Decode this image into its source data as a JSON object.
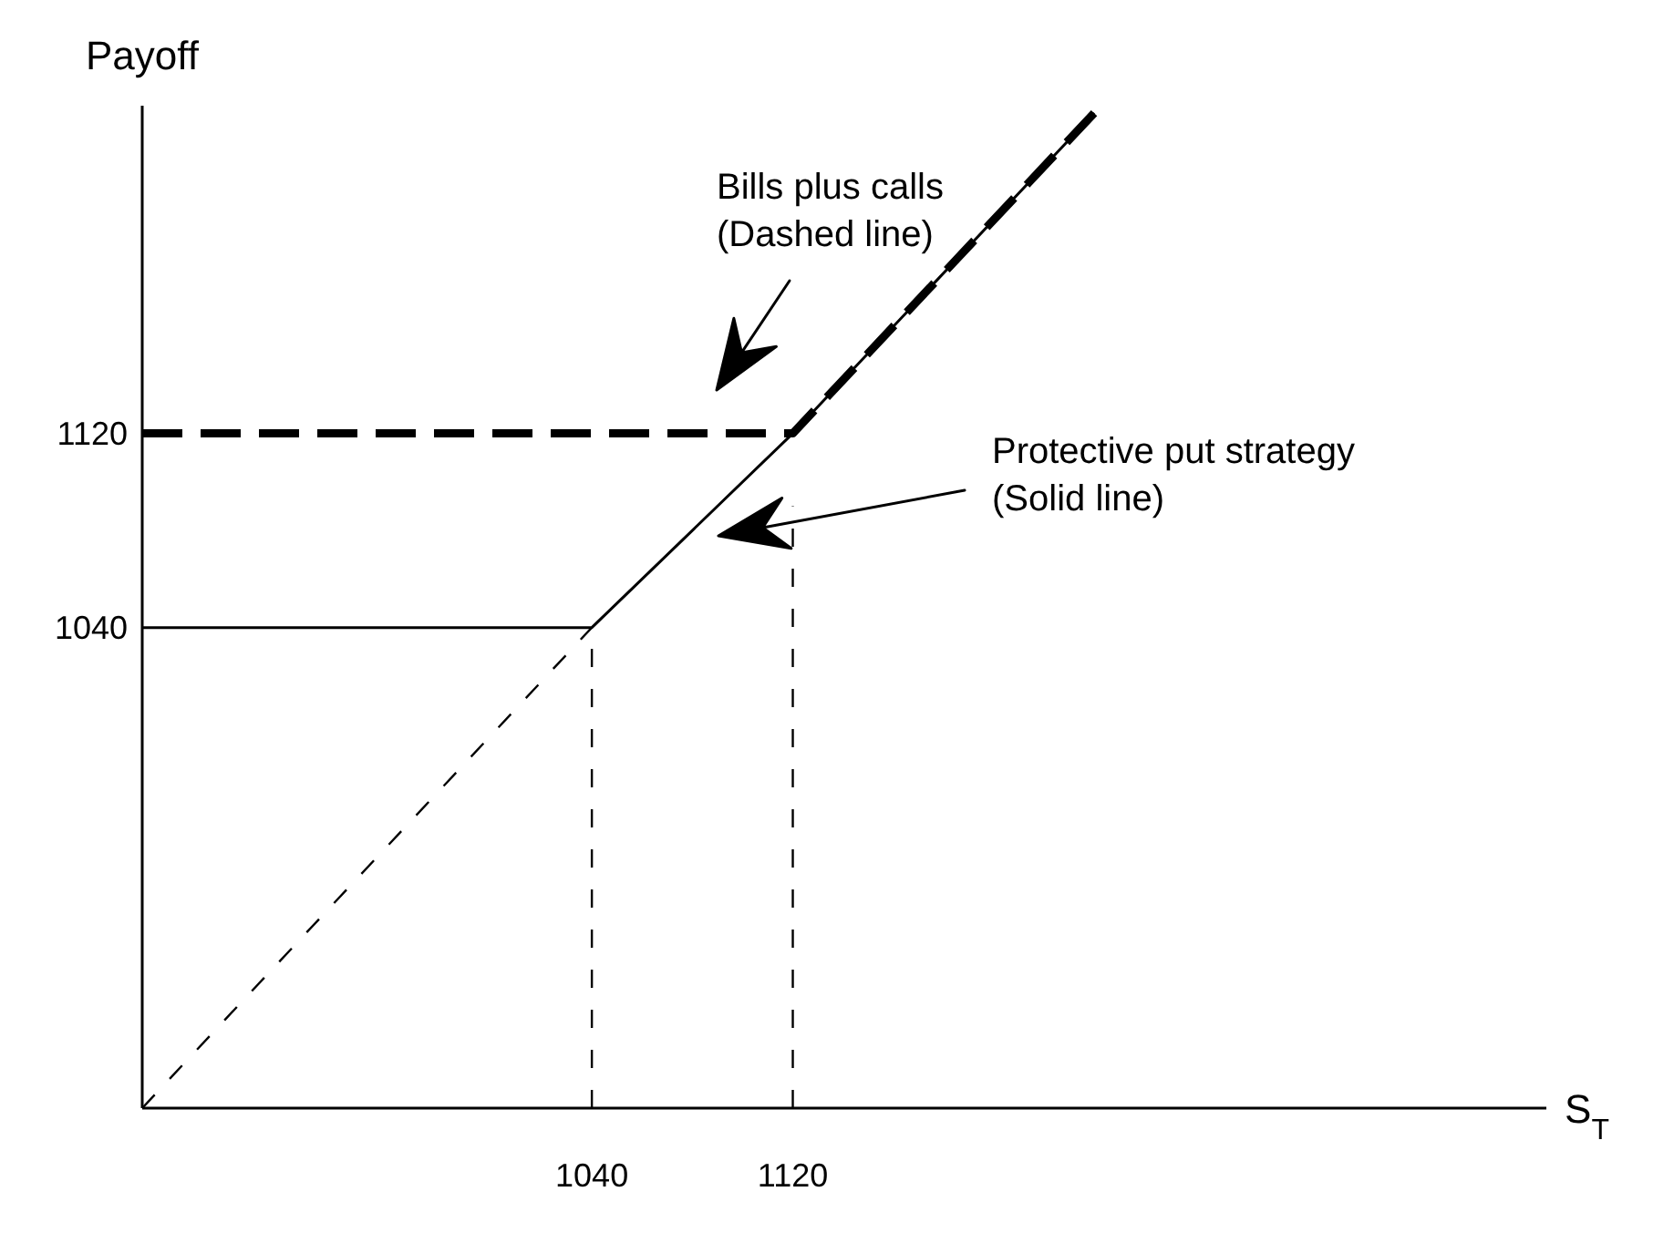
{
  "chart_data": {
    "type": "line",
    "xlabel": "S$_{T}$",
    "ylabel": "Payoff",
    "xlim": [
      861,
      1420
    ],
    "ylim": [
      842,
      1255
    ],
    "xticks": [
      1040,
      1120
    ],
    "yticks": [
      1040,
      1120
    ],
    "marker": "none",
    "series": [
      {
        "color": "#000000",
        "line_style": "solid",
        "x": [
          861,
          1040,
          1120,
          1240
        ],
        "values": [
          1040,
          1040,
          1120,
          1252
        ]
      },
      {
        "color": "#000000",
        "line_style": "dashed",
        "x": [
          861,
          1120,
          1240
        ],
        "values": [
          1120,
          1120,
          1252
        ]
      },
      {
        "color": "#000000",
        "line_style": "dashed",
        "x": [
          861,
          1040
        ],
        "values": [
          842,
          1040
        ]
      },
      {
        "color": "#000000",
        "line_style": "dashed",
        "x": [
          1040,
          1040
        ],
        "values": [
          842,
          1040
        ]
      },
      {
        "color": "#000000",
        "line_style": "dashed",
        "x": [
          1120,
          1120
        ],
        "values": [
          842,
          1090
        ]
      }
    ],
    "annotations": [
      "Bills plus calls\n(Dashed line)",
      "Protective put strategy\n(Solid line)"
    ]
  }
}
